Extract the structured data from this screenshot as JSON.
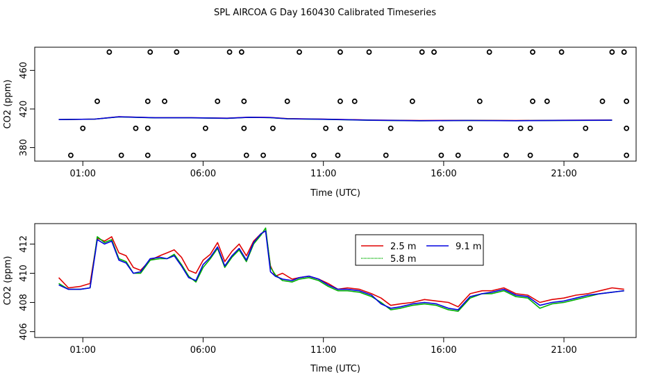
{
  "title": "SPL AIRCOA G  Day 160430  Calibrated Timeseries",
  "colors": {
    "2.5 m": "#e00000",
    "5.8 m": "#00b000",
    "9.1 m": "#0000e0",
    "points": "#000000"
  },
  "chart_data": [
    {
      "type": "scatter",
      "xlabel": "Time (UTC)",
      "ylabel": "CO2 (ppm)",
      "xlim": [
        -1.0,
        24.0
      ],
      "ylim": [
        366,
        484
      ],
      "x_ticks": [
        1,
        6,
        11,
        16,
        21
      ],
      "x_tick_labels": [
        "01:00",
        "06:00",
        "11:00",
        "16:00",
        "21:00"
      ],
      "y_ticks": [
        380,
        420,
        460
      ],
      "y_tick_labels": [
        "380",
        "420",
        "460"
      ],
      "grid": false,
      "scatter_points": [
        [
          2.1,
          479
        ],
        [
          3.8,
          479
        ],
        [
          4.9,
          479
        ],
        [
          7.1,
          479
        ],
        [
          7.6,
          479
        ],
        [
          10.0,
          479
        ],
        [
          11.7,
          479
        ],
        [
          12.9,
          479
        ],
        [
          15.1,
          479
        ],
        [
          15.6,
          479
        ],
        [
          17.9,
          479
        ],
        [
          19.7,
          479
        ],
        [
          20.9,
          479
        ],
        [
          23.0,
          479
        ],
        [
          23.5,
          479
        ],
        [
          1.6,
          428
        ],
        [
          3.7,
          428
        ],
        [
          4.4,
          428
        ],
        [
          6.6,
          428
        ],
        [
          7.7,
          428
        ],
        [
          9.5,
          428
        ],
        [
          11.7,
          428
        ],
        [
          12.3,
          428
        ],
        [
          14.7,
          428
        ],
        [
          17.5,
          428
        ],
        [
          19.7,
          428
        ],
        [
          20.3,
          428
        ],
        [
          22.6,
          428
        ],
        [
          23.6,
          428
        ],
        [
          1.0,
          400
        ],
        [
          3.2,
          400
        ],
        [
          3.7,
          400
        ],
        [
          6.1,
          400
        ],
        [
          7.7,
          400
        ],
        [
          8.9,
          400
        ],
        [
          11.1,
          400
        ],
        [
          11.7,
          400
        ],
        [
          13.8,
          400
        ],
        [
          15.9,
          400
        ],
        [
          17.1,
          400
        ],
        [
          19.2,
          400
        ],
        [
          19.6,
          400
        ],
        [
          21.9,
          400
        ],
        [
          23.6,
          400
        ],
        [
          0.5,
          372
        ],
        [
          2.6,
          372
        ],
        [
          3.7,
          372
        ],
        [
          5.6,
          372
        ],
        [
          7.8,
          372
        ],
        [
          8.5,
          372
        ],
        [
          10.6,
          372
        ],
        [
          11.6,
          372
        ],
        [
          13.6,
          372
        ],
        [
          15.9,
          372
        ],
        [
          16.6,
          372
        ],
        [
          18.6,
          372
        ],
        [
          19.6,
          372
        ],
        [
          21.5,
          372
        ],
        [
          23.6,
          372
        ]
      ],
      "series": [
        {
          "name": "2.5 m",
          "x": [
            0.0,
            1.5,
            2.5,
            4.0,
            5.5,
            7.0,
            7.9,
            8.8,
            9.5,
            11.0,
            13.0,
            15.0,
            17.0,
            19.0,
            21.0,
            23.0
          ],
          "values": [
            409.0,
            409.5,
            412.0,
            411.0,
            411.0,
            410.5,
            411.5,
            411.2,
            410.0,
            409.5,
            408.5,
            408.0,
            408.2,
            408.0,
            408.3,
            408.5
          ]
        },
        {
          "name": "5.8 m",
          "x": [
            0.0,
            1.5,
            2.5,
            4.0,
            5.5,
            7.0,
            7.9,
            8.8,
            9.5,
            11.0,
            13.0,
            15.0,
            17.0,
            19.0,
            21.0,
            23.0
          ],
          "values": [
            409.0,
            409.5,
            411.8,
            410.8,
            410.8,
            410.3,
            411.3,
            411.0,
            409.8,
            409.3,
            408.3,
            407.8,
            408.0,
            407.9,
            408.1,
            408.3
          ]
        },
        {
          "name": "9.1 m",
          "x": [
            0.0,
            1.5,
            2.5,
            4.0,
            5.5,
            7.0,
            7.9,
            8.8,
            9.5,
            11.0,
            13.0,
            15.0,
            17.0,
            19.0,
            21.0,
            23.0
          ],
          "values": [
            409.0,
            409.5,
            411.9,
            410.9,
            410.9,
            410.4,
            411.4,
            411.1,
            409.9,
            409.4,
            408.4,
            407.9,
            408.1,
            407.9,
            408.2,
            408.4
          ]
        }
      ]
    },
    {
      "type": "line",
      "xlabel": "Time (UTC)",
      "ylabel": "CO2 (ppm)",
      "xlim": [
        -1.0,
        24.0
      ],
      "ylim": [
        405.6,
        413.4
      ],
      "x_ticks": [
        1,
        6,
        11,
        16,
        21
      ],
      "x_tick_labels": [
        "01:00",
        "06:00",
        "11:00",
        "16:00",
        "21:00"
      ],
      "y_ticks": [
        406,
        408,
        410,
        412
      ],
      "y_tick_labels": [
        "406",
        "408",
        "410",
        "412"
      ],
      "grid": false,
      "legend": "top-center",
      "series": [
        {
          "name": "2.5 m",
          "x": [
            0.0,
            0.4,
            0.9,
            1.3,
            1.6,
            1.9,
            2.2,
            2.5,
            2.8,
            3.1,
            3.4,
            3.8,
            4.2,
            4.5,
            4.8,
            5.1,
            5.4,
            5.7,
            6.0,
            6.3,
            6.6,
            6.9,
            7.2,
            7.5,
            7.8,
            8.1,
            8.4,
            8.6,
            8.8,
            9.0,
            9.3,
            9.7,
            10.0,
            10.4,
            10.8,
            11.2,
            11.6,
            12.0,
            12.5,
            13.0,
            13.4,
            13.8,
            14.2,
            14.7,
            15.2,
            15.7,
            16.2,
            16.6,
            17.1,
            17.6,
            18.0,
            18.5,
            19.0,
            19.5,
            20.0,
            20.5,
            21.0,
            21.5,
            22.0,
            22.5,
            23.0,
            23.5
          ],
          "values": [
            409.7,
            409.0,
            409.1,
            409.3,
            412.4,
            412.2,
            412.5,
            411.4,
            411.2,
            410.4,
            410.2,
            410.9,
            411.2,
            411.4,
            411.6,
            411.1,
            410.2,
            410.0,
            410.9,
            411.3,
            412.1,
            410.8,
            411.5,
            412.0,
            411.2,
            412.2,
            412.7,
            412.9,
            410.5,
            409.8,
            410.0,
            409.6,
            409.7,
            409.8,
            409.6,
            409.3,
            408.9,
            409.0,
            408.9,
            408.6,
            408.3,
            407.8,
            407.9,
            408.0,
            408.2,
            408.1,
            408.0,
            407.7,
            408.6,
            408.8,
            408.8,
            409.0,
            408.6,
            408.5,
            408.0,
            408.2,
            408.3,
            408.5,
            408.6,
            408.8,
            409.0,
            408.9
          ]
        },
        {
          "name": "5.8 m",
          "x": [
            0.0,
            0.4,
            0.9,
            1.3,
            1.6,
            1.9,
            2.2,
            2.5,
            2.8,
            3.1,
            3.4,
            3.8,
            4.2,
            4.5,
            4.8,
            5.1,
            5.4,
            5.7,
            6.0,
            6.3,
            6.6,
            6.9,
            7.2,
            7.5,
            7.8,
            8.1,
            8.4,
            8.6,
            8.8,
            9.0,
            9.3,
            9.7,
            10.0,
            10.4,
            10.8,
            11.2,
            11.6,
            12.0,
            12.5,
            13.0,
            13.4,
            13.8,
            14.2,
            14.7,
            15.2,
            15.7,
            16.2,
            16.6,
            17.1,
            17.6,
            18.0,
            18.5,
            19.0,
            19.5,
            20.0,
            20.5,
            21.0,
            21.5,
            22.0,
            22.5,
            23.0,
            23.5
          ],
          "values": [
            409.3,
            408.9,
            408.9,
            409.0,
            412.5,
            412.1,
            412.3,
            411.0,
            410.8,
            410.0,
            410.0,
            410.9,
            411.0,
            411.0,
            411.3,
            410.6,
            409.8,
            409.4,
            410.4,
            411.0,
            411.7,
            410.4,
            411.1,
            411.6,
            410.8,
            412.0,
            412.6,
            413.1,
            410.4,
            409.9,
            409.5,
            409.4,
            409.6,
            409.7,
            409.5,
            409.1,
            408.8,
            408.8,
            408.7,
            408.4,
            408.0,
            407.5,
            407.6,
            407.8,
            407.9,
            407.8,
            407.5,
            407.4,
            408.3,
            408.6,
            408.6,
            408.8,
            408.4,
            408.3,
            407.6,
            407.9,
            408.0,
            408.2,
            408.4,
            408.6,
            408.7,
            408.8
          ]
        },
        {
          "name": "9.1 m",
          "x": [
            0.0,
            0.4,
            0.9,
            1.3,
            1.6,
            1.9,
            2.2,
            2.5,
            2.8,
            3.1,
            3.4,
            3.8,
            4.2,
            4.5,
            4.8,
            5.1,
            5.4,
            5.7,
            6.0,
            6.3,
            6.6,
            6.9,
            7.2,
            7.5,
            7.8,
            8.1,
            8.4,
            8.6,
            8.8,
            9.0,
            9.3,
            9.7,
            10.0,
            10.4,
            10.8,
            11.2,
            11.6,
            12.0,
            12.5,
            13.0,
            13.4,
            13.8,
            14.2,
            14.7,
            15.2,
            15.7,
            16.2,
            16.6,
            17.1,
            17.6,
            18.0,
            18.5,
            19.0,
            19.5,
            20.0,
            20.5,
            21.0,
            21.5,
            22.0,
            22.5,
            23.0,
            23.5
          ],
          "values": [
            409.2,
            408.9,
            408.9,
            409.0,
            412.3,
            412.0,
            412.2,
            410.9,
            410.7,
            410.0,
            410.1,
            411.0,
            411.1,
            411.0,
            411.2,
            410.5,
            409.7,
            409.5,
            410.6,
            411.1,
            411.8,
            410.5,
            411.2,
            411.7,
            410.9,
            412.1,
            412.7,
            412.9,
            410.1,
            409.8,
            409.6,
            409.5,
            409.7,
            409.8,
            409.6,
            409.2,
            408.9,
            408.9,
            408.8,
            408.5,
            407.9,
            407.6,
            407.7,
            407.9,
            408.0,
            407.9,
            407.6,
            407.5,
            408.4,
            408.6,
            408.7,
            408.9,
            408.5,
            408.4,
            407.8,
            408.0,
            408.1,
            408.3,
            408.5,
            408.6,
            408.7,
            408.8
          ]
        }
      ]
    }
  ]
}
